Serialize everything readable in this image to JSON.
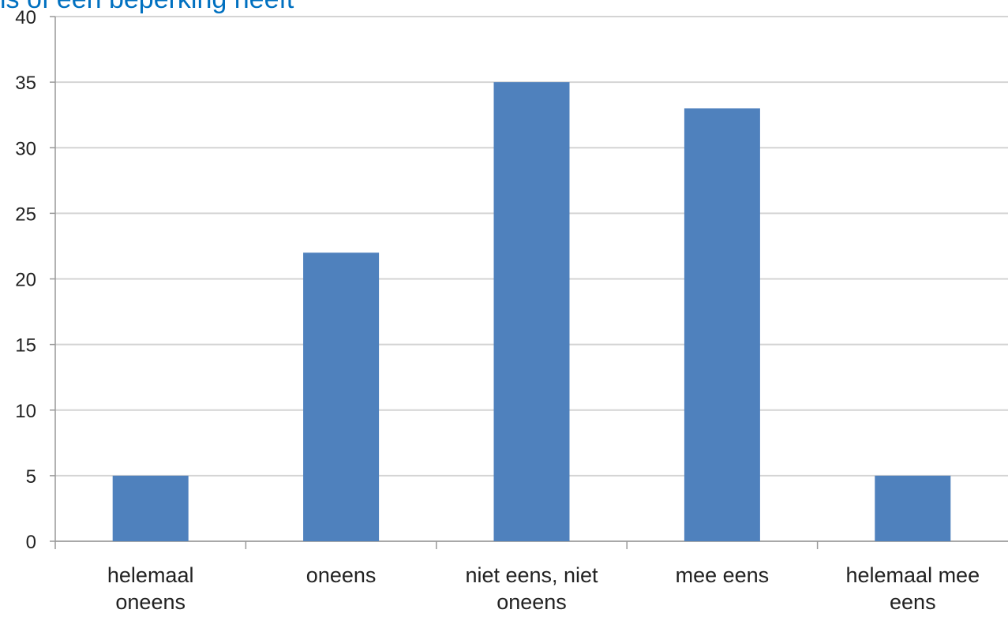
{
  "chart_data": {
    "type": "bar",
    "title": "is of een beperking heeft",
    "categories": [
      "helemaal oneens",
      "oneens",
      "niet eens, niet oneens",
      "mee eens",
      "helemaal mee eens"
    ],
    "values": [
      5,
      22,
      35,
      33,
      5
    ],
    "color": "#4f81bd",
    "ylim": [
      0,
      40
    ],
    "yticks": [
      0,
      5,
      10,
      15,
      20,
      25,
      30,
      35,
      40
    ],
    "grid": true
  }
}
